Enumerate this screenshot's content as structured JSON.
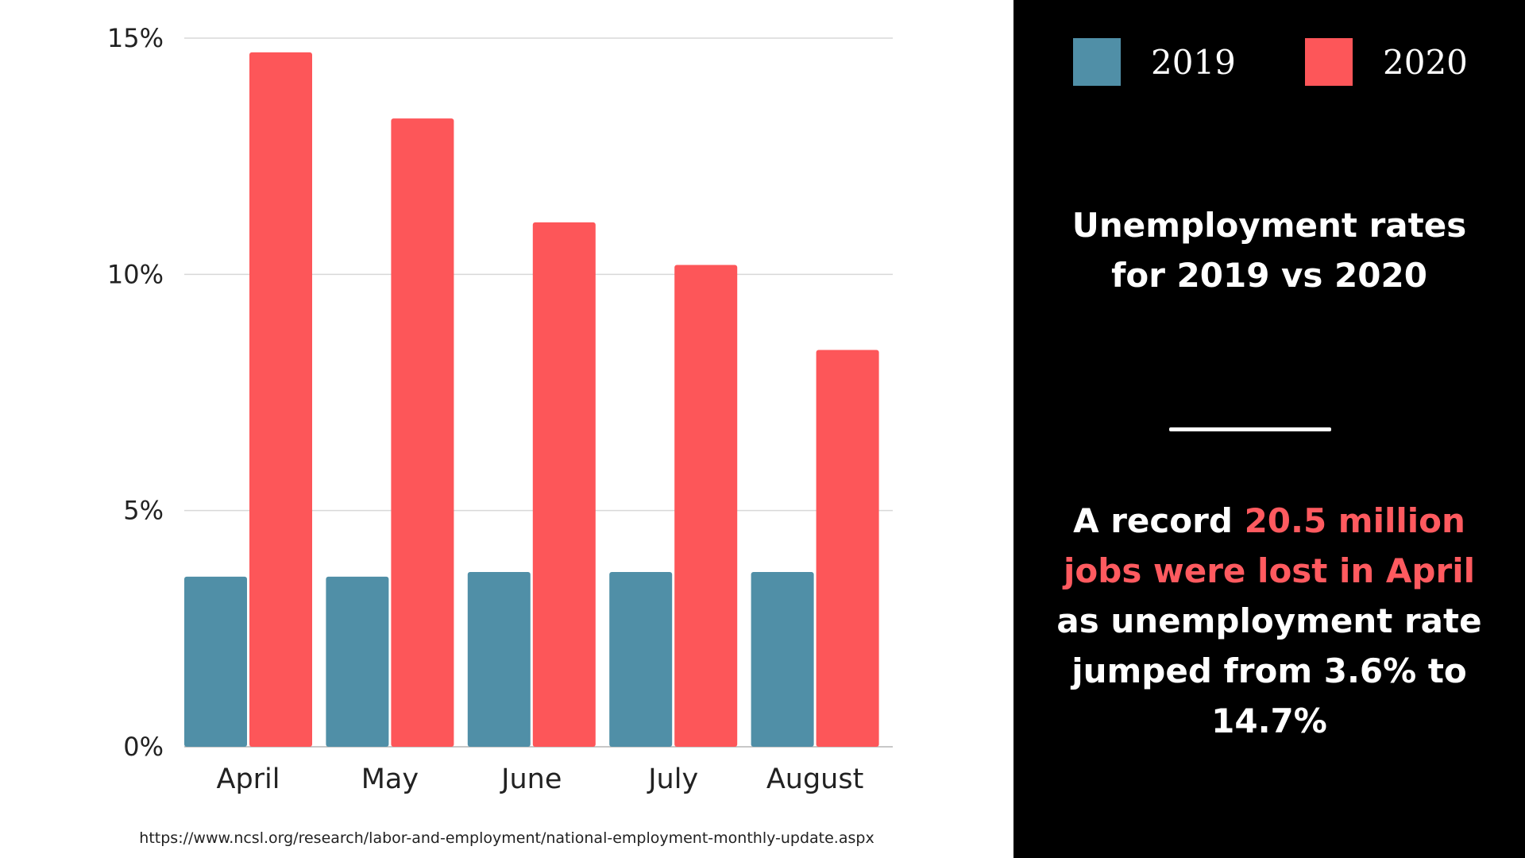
{
  "chart_data": {
    "type": "bar",
    "title": "Unemployment rates for 2019 vs 2020",
    "categories": [
      "April",
      "May",
      "June",
      "July",
      "August"
    ],
    "series": [
      {
        "name": "2019",
        "color": "#508fa7",
        "values": [
          3.6,
          3.6,
          3.7,
          3.7,
          3.7
        ]
      },
      {
        "name": "2020",
        "color": "#fd5659",
        "values": [
          14.7,
          13.3,
          11.1,
          10.2,
          8.4
        ]
      }
    ],
    "y_ticks": [
      {
        "value": 0,
        "label": "0%"
      },
      {
        "value": 5,
        "label": "5%"
      },
      {
        "value": 10,
        "label": "10%"
      },
      {
        "value": 15,
        "label": "15%"
      }
    ],
    "ylim": [
      0,
      15
    ],
    "grid": true,
    "legend_position": "top-right"
  },
  "source": "https://www.ncsl.org/research/labor-and-employment/national-employment-monthly-update.aspx",
  "legend": {
    "label_2019": "2019",
    "label_2020": "2020"
  },
  "side_panel": {
    "title": "Unemployment rates for 2019 vs 2020",
    "annotation": {
      "part1": "A record ",
      "highlight": "20.5 million jobs were lost in April",
      "part2": " as unemployment rate jumped from 3.6% to 14.7%",
      "highlight_color": "#ff5a5f"
    }
  }
}
